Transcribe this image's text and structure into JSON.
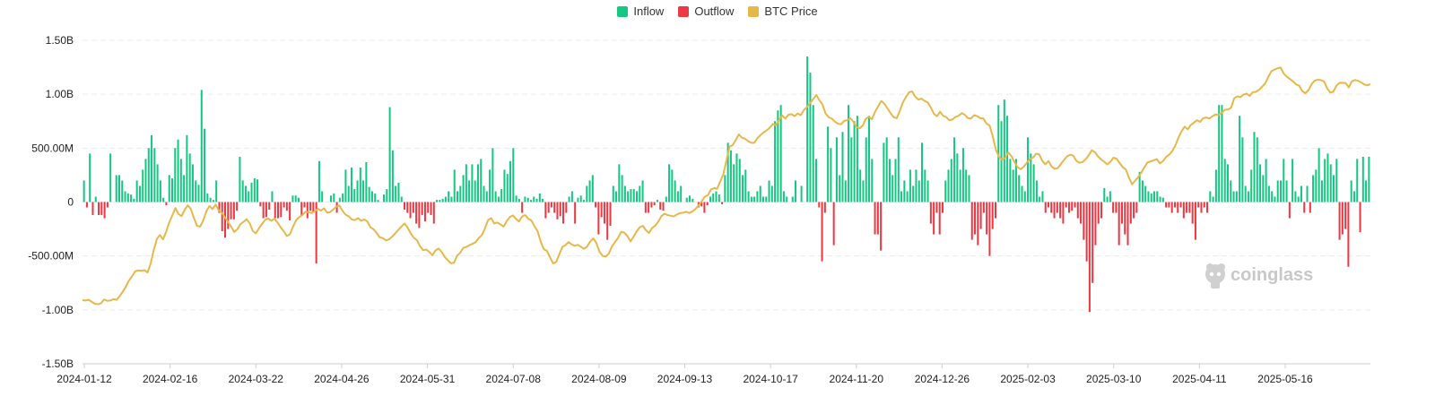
{
  "chart_data": {
    "type": "bar",
    "title": "",
    "xlabel": "",
    "ylabel": "",
    "ylim": [
      -1.5,
      1.5
    ],
    "y_unit": "B (USD)",
    "y_ticks": [
      {
        "value": 1.5,
        "label": "1.50B"
      },
      {
        "value": 1.0,
        "label": "1.00B"
      },
      {
        "value": 0.5,
        "label": "500.00M"
      },
      {
        "value": 0,
        "label": "0"
      },
      {
        "value": -0.5,
        "label": "-500.00M"
      },
      {
        "value": -1.0,
        "label": "-1.00B"
      },
      {
        "value": -1.5,
        "label": "-1.50B"
      }
    ],
    "x_ticks": [
      "2024-01-12",
      "2024-02-16",
      "2024-03-22",
      "2024-04-26",
      "2024-05-31",
      "2024-07-08",
      "2024-08-09",
      "2024-09-13",
      "2024-10-17",
      "2024-11-20",
      "2024-12-26",
      "2025-02-03",
      "2025-03-10",
      "2025-04-11",
      "2025-05-16"
    ],
    "grid": true,
    "legend": "top-center",
    "series": [
      {
        "name": "Inflow",
        "color": "#16c784",
        "values": [
          0.2,
          0.0,
          0.0,
          0.05,
          0.0,
          0.0,
          0.0,
          0.0,
          0.0,
          0.45,
          0.0,
          0.0,
          0.0,
          0.0,
          0.0,
          0.0,
          0.25,
          0.25,
          0.2,
          0.1,
          0.0,
          0.2,
          0.15,
          0.3,
          0.0,
          0.0,
          0.0,
          0.0,
          0.0,
          0.0,
          0.0,
          0.0,
          0.0,
          0.0,
          0.0,
          0.0,
          0.4,
          0.5,
          0.55,
          0.5,
          0.2,
          0.0,
          0.0,
          0.35,
          0.5,
          0.35,
          0.0,
          0.0,
          0.0,
          0.0,
          0.0,
          0.0,
          0.0,
          0.0,
          0.0,
          0.0,
          0.0,
          0.0,
          0.0,
          0.0,
          0.0,
          0.0,
          0.0,
          0.0,
          0.0,
          0.0,
          0.0,
          0.0,
          0.0,
          0.0,
          0.0,
          0.0,
          0.0,
          0.0,
          0.0,
          0.0,
          0.0,
          0.0,
          0.0,
          0.0,
          0.0,
          0.0,
          0.0,
          0.0,
          0.0,
          0.0,
          0.0,
          0.0,
          0.0,
          0.0,
          0.0,
          0.0,
          0.0,
          0.0,
          0.0,
          0.0,
          0.0,
          0.0,
          0.0,
          0.0,
          0.0,
          0.0,
          0.0,
          0.0,
          0.0,
          0.0,
          0.0,
          0.0,
          0.0,
          0.0,
          0.0,
          0.0,
          0.0,
          0.0,
          0.0,
          0.0,
          0.0,
          0.0,
          0.0,
          0.0,
          0.0,
          0.0,
          0.0,
          0.0,
          0.0,
          0.0,
          0.0,
          0.0,
          0.0,
          0.0,
          0.0,
          0.0,
          0.0,
          0.0,
          0.0,
          0.0,
          0.0,
          0.0,
          0.0,
          0.0,
          0.0,
          0.0,
          0.0,
          0.0,
          0.0,
          0.0,
          0.0,
          0.0,
          0.0,
          0.0,
          0.0,
          0.0,
          0.0,
          0.0,
          0.0,
          0.0,
          0.0,
          0.0,
          0.0,
          0.0,
          0.0,
          0.0,
          0.0,
          0.0,
          0.0,
          0.0,
          0.0,
          0.0,
          0.0,
          0.0,
          0.0,
          0.0,
          0.0,
          0.0,
          0.0,
          0.0,
          0.0,
          0.0,
          0.0,
          0.0,
          0.0,
          0.0,
          0.0,
          0.0,
          0.0,
          0.0,
          0.0,
          0.0,
          0.0,
          0.0,
          0.0,
          0.0,
          0.0,
          0.0,
          0.0,
          0.0,
          0.0,
          0.0,
          0.0,
          0.0,
          0.0,
          0.0,
          0.0,
          0.0,
          0.0,
          0.0,
          0.0,
          0.0,
          0.0,
          0.0,
          0.0,
          0.0,
          0.0,
          0.0,
          0.0,
          0.0,
          0.0,
          0.0,
          0.0,
          0.0,
          0.0,
          0.0,
          0.0,
          0.0,
          0.0,
          0.0,
          0.0,
          0.0,
          0.0,
          0.0,
          0.0,
          0.0,
          0.0,
          0.0,
          0.0,
          0.0,
          0.0,
          0.0,
          0.0,
          0.0,
          0.0,
          0.0,
          0.0,
          0.0,
          0.0,
          0.0,
          0.0,
          0.0,
          0.0,
          0.0,
          0.0,
          0.0,
          0.0,
          0.0,
          0.0,
          0.0,
          0.0,
          0.0,
          0.0,
          0.0,
          0.0,
          0.0,
          0.0,
          0.0,
          0.0,
          0.0,
          0.0,
          0.0,
          0.0,
          0.0,
          0.0,
          0.0,
          0.0,
          0.0,
          0.0,
          0.0,
          0.0,
          0.0,
          0.0,
          0.0,
          0.0,
          0.0,
          0.0,
          0.0,
          0.0,
          0.0,
          0.0,
          0.0,
          0.0,
          0.0,
          0.0,
          0.0,
          0.0,
          0.0,
          0.0,
          0.0,
          0.0,
          0.0,
          0.0,
          0.0,
          0.0,
          0.0,
          0.0,
          0.0,
          0.0,
          0.0,
          0.0,
          0.0,
          0.0,
          0.0,
          0.0,
          0.0,
          0.0,
          0.0,
          0.0,
          0.0,
          0.0,
          0.0,
          0.0,
          0.0,
          0.0,
          0.0,
          0.0,
          0.0,
          0.0,
          0.0,
          0.0,
          0.0,
          0.0,
          0.0,
          0.0,
          0.0,
          0.0,
          0.0,
          0.0,
          0.0,
          0.0,
          0.0,
          0.0,
          0.0,
          0.0,
          0.0,
          0.0,
          0.0,
          0.0,
          0.0,
          0.0,
          0.0,
          0.0,
          0.0,
          0.0,
          0.0,
          0.0,
          0.0,
          0.0,
          0.0,
          0.0,
          0.0,
          0.0,
          0.0,
          0.0,
          0.0,
          0.0,
          0.0,
          0.0,
          0.0,
          0.0,
          0.0,
          0.0,
          0.0,
          0.0,
          0.0,
          0.0
        ]
      },
      {
        "name": "Outflow",
        "color": "#ea3943",
        "values": []
      },
      {
        "name": "BTC Price",
        "color": "#e6b84a",
        "values": []
      }
    ],
    "flows": [
      0.2,
      -0.05,
      0.45,
      -0.12,
      0.05,
      -0.12,
      -0.12,
      -0.15,
      -0.05,
      0.45,
      0.0,
      0.25,
      0.25,
      0.2,
      0.1,
      0.08,
      0.07,
      0.03,
      0.2,
      0.15,
      0.3,
      0.4,
      0.5,
      0.62,
      0.5,
      0.35,
      0.2,
      0.04,
      -0.03,
      0.25,
      0.22,
      0.5,
      0.58,
      0.4,
      0.25,
      0.62,
      0.45,
      0.35,
      0.2,
      0.16,
      1.04,
      0.68,
      0.08,
      0.04,
      0.02,
      0.2,
      -0.1,
      -0.27,
      -0.33,
      -0.25,
      -0.16,
      -0.16,
      -0.08,
      0.42,
      0.2,
      0.15,
      0.1,
      0.18,
      0.22,
      0.21,
      -0.04,
      -0.15,
      -0.14,
      -0.07,
      0.1,
      -0.15,
      -0.15,
      -0.14,
      -0.05,
      -0.08,
      -0.17,
      0.06,
      0.06,
      0.04,
      -0.12,
      -0.05,
      -0.15,
      -0.08,
      -0.1,
      -0.57,
      0.38,
      0.1,
      0.0,
      0.0,
      0.06,
      0.08,
      -0.1,
      0.04,
      0.08,
      0.3,
      0.15,
      0.32,
      0.12,
      0.2,
      0.32,
      0.2,
      0.37,
      0.14,
      0.1,
      0.08,
      0.02,
      0.0,
      0.07,
      0.12,
      0.88,
      0.48,
      0.15,
      0.18,
      0.05,
      -0.07,
      -0.1,
      -0.15,
      -0.1,
      -0.2,
      -0.24,
      -0.12,
      -0.18,
      -0.1,
      -0.12,
      -0.2,
      0.02,
      0.02,
      0.03,
      0.05,
      0.1,
      0.05,
      0.3,
      0.1,
      0.15,
      0.25,
      0.35,
      0.2,
      0.35,
      0.2,
      0.35,
      0.4,
      0.15,
      0.1,
      0.3,
      0.5,
      0.1,
      0.05,
      0.12,
      0.3,
      0.26,
      0.38,
      0.5,
      0.06,
      0.03,
      -0.1,
      0.05,
      0.04,
      0.02,
      0.05,
      0.03,
      0.08,
      0.03,
      -0.15,
      -0.1,
      -0.05,
      -0.1,
      -0.16,
      -0.13,
      -0.2,
      -0.1,
      0.05,
      0.1,
      -0.2,
      0.04,
      0.06,
      0.02,
      0.15,
      0.2,
      0.25,
      -0.05,
      -0.3,
      -0.14,
      -0.2,
      -0.35,
      -0.22,
      0.15,
      0.1,
      0.35,
      0.25,
      0.15,
      0.1,
      0.12,
      0.12,
      0.1,
      0.15,
      0.2,
      -0.1,
      -0.1,
      -0.05,
      -0.03,
      0.02,
      -0.07,
      -0.08,
      0.05,
      0.35,
      0.3,
      0.2,
      0.1,
      0.15,
      0.0,
      0.04,
      0.06,
      0.03,
      0.0,
      -0.05,
      -0.04,
      -0.1,
      -0.03,
      0.05,
      0.08,
      0.1,
      0.07,
      -0.02,
      0.25,
      0.55,
      0.48,
      0.35,
      0.45,
      0.4,
      0.25,
      0.3,
      0.1,
      0.05,
      0.05,
      0.1,
      0.15,
      0.05,
      0.05,
      0.2,
      0.15,
      0.75,
      0.85,
      0.9,
      0.1,
      0.05,
      0.0,
      0.05,
      0.2,
      0.0,
      0.15,
      0.0,
      1.35,
      1.2,
      0.9,
      0.4,
      -0.05,
      -0.55,
      -0.1,
      0.7,
      0.5,
      -0.4,
      0.6,
      0.25,
      0.65,
      0.2,
      0.9,
      0.6,
      0.75,
      0.8,
      0.3,
      0.2,
      0.6,
      0.8,
      0.4,
      -0.3,
      -0.3,
      -0.45,
      0.55,
      0.6,
      0.4,
      0.25,
      0.4,
      0.6,
      0.1,
      0.2,
      0.1,
      0.3,
      0.15,
      0.3,
      0.2,
      0.55,
      0.3,
      0.2,
      -0.2,
      -0.3,
      -0.1,
      -0.3,
      -0.1,
      0.2,
      0.3,
      0.4,
      0.6,
      0.45,
      0.3,
      0.5,
      0.3,
      0.25,
      -0.35,
      -0.3,
      -0.4,
      -0.25,
      -0.1,
      -0.3,
      -0.5,
      -0.25,
      -0.15,
      0.9,
      0.75,
      0.95,
      0.8,
      0.4,
      0.3,
      0.4,
      0.25,
      0.15,
      0.1,
      0.6,
      0.45,
      0.35,
      0.2,
      0.05,
      0.1,
      -0.1,
      -0.05,
      -0.1,
      -0.15,
      -0.1,
      -0.15,
      -0.2,
      -0.05,
      -0.1,
      -0.08,
      -0.05,
      -0.15,
      -0.2,
      -0.35,
      -0.55,
      -1.02,
      -0.75,
      -0.4,
      -0.2,
      -0.15,
      0.13,
      0.05,
      0.1,
      -0.1,
      -0.1,
      -0.4,
      -0.2,
      -0.3,
      -0.4,
      -0.2,
      -0.15,
      -0.1,
      0.28,
      0.2,
      0.15,
      0.1,
      0.08,
      0.1,
      0.1,
      0.05,
      0.04,
      -0.05,
      -0.05,
      -0.1,
      -0.05,
      -0.1,
      -0.05,
      -0.15,
      -0.1,
      -0.1,
      -0.2,
      -0.35,
      -0.05,
      -0.1,
      -0.05,
      -0.1,
      0.1,
      0.05,
      0.3,
      0.9,
      0.9,
      0.4,
      0.35,
      0.2,
      0.1,
      0.1,
      0.8,
      0.6,
      0.15,
      0.1,
      0.3,
      0.65,
      0.6,
      0.35,
      0.25,
      0.4,
      0.15,
      0.1,
      0.05,
      0.2,
      0.2,
      0.4,
      0.2,
      -0.15,
      0.4,
      0.1,
      0.05,
      0.15,
      -0.1,
      0.15,
      -0.1,
      0.25,
      0.3,
      0.5,
      0.2,
      0.4,
      0.45,
      0.35,
      0.25,
      0.4,
      -0.35,
      -0.3,
      -0.25,
      -0.6,
      0.2,
      0.1,
      0.4,
      -0.28,
      0.42,
      0.2,
      0.42
    ],
    "btc_price": [
      43000,
      42900,
      43100,
      42500,
      41900,
      41800,
      42100,
      43200,
      42800,
      42900,
      43300,
      43100,
      44200,
      45500,
      47000,
      48800,
      50100,
      51500,
      51800,
      51700,
      51900,
      51200,
      53800,
      57800,
      61100,
      62300,
      61000,
      63200,
      66000,
      68100,
      70300,
      68500,
      67900,
      69800,
      71100,
      70000,
      67300,
      65000,
      64800,
      66600,
      69300,
      70900,
      70000,
      71300,
      69600,
      68900,
      67500,
      66200,
      64800,
      63200,
      64000,
      65500,
      66200,
      67000,
      65800,
      63500,
      62800,
      64300,
      65600,
      66800,
      67200,
      66500,
      67100,
      66000,
      64600,
      63400,
      62000,
      62500,
      64800,
      66700,
      67600,
      68200,
      69200,
      69000,
      68800,
      69300,
      70100,
      69500,
      70200,
      68900,
      69100,
      69900,
      70700,
      71000,
      69400,
      68300,
      67800,
      66900,
      66700,
      67300,
      66500,
      66900,
      66300,
      64600,
      64000,
      62900,
      61600,
      61400,
      60700,
      61000,
      61800,
      62800,
      63800,
      64800,
      65700,
      64500,
      62800,
      61500,
      60800,
      59000,
      57800,
      58000,
      57300,
      56300,
      57700,
      58300,
      57300,
      55800,
      54800,
      53900,
      54100,
      56200,
      57000,
      58500,
      58800,
      59300,
      59700,
      60200,
      61400,
      62300,
      64300,
      66700,
      67300,
      65700,
      66000,
      65400,
      64800,
      66400,
      67600,
      68100,
      67100,
      66300,
      67800,
      68200,
      67100,
      66600,
      64900,
      63400,
      60300,
      58100,
      57600,
      55700,
      53900,
      54300,
      56600,
      58800,
      59300,
      60200,
      59500,
      59100,
      59400,
      58800,
      58200,
      58900,
      60400,
      61300,
      59900,
      57300,
      56100,
      55900,
      56800,
      58900,
      60200,
      61500,
      63200,
      63000,
      62000,
      60400,
      61800,
      63400,
      64600,
      65000,
      63700,
      62900,
      64400,
      65100,
      66300,
      67900,
      68600,
      68200,
      68000,
      67800,
      68400,
      68800,
      68900,
      69200,
      68800,
      69300,
      70000,
      71100,
      72300,
      73600,
      74100,
      75800,
      76200,
      76000,
      78200,
      80300,
      84400,
      88500,
      88900,
      90400,
      92100,
      91100,
      90800,
      90100,
      89600,
      89600,
      91000,
      91900,
      92700,
      93300,
      94100,
      95200,
      94800,
      96400,
      97700,
      96800,
      97900,
      98100,
      97500,
      98300,
      97800,
      99300,
      100200,
      101400,
      102500,
      103800,
      102200,
      101000,
      98300,
      97200,
      96800,
      95900,
      95300,
      95100,
      96100,
      96300,
      96900,
      95800,
      94300,
      93900,
      94700,
      96700,
      97300,
      96600,
      98800,
      100400,
      102000,
      101200,
      99800,
      98400,
      97200,
      96900,
      99100,
      101600,
      103200,
      104600,
      104800,
      103200,
      102400,
      102700,
      102000,
      101600,
      100100,
      98200,
      97500,
      98800,
      97600,
      97200,
      96300,
      96500,
      97300,
      97600,
      98400,
      97900,
      96900,
      96800,
      97800,
      97500,
      96900,
      96800,
      95300,
      94700,
      91600,
      87600,
      85500,
      84600,
      85100,
      86800,
      85700,
      84000,
      82400,
      81800,
      82500,
      83700,
      84800,
      85200,
      86400,
      86200,
      84300,
      83200,
      84200,
      82600,
      81900,
      82100,
      83300,
      84500,
      85600,
      86100,
      85800,
      84300,
      83700,
      83900,
      84700,
      85900,
      87400,
      86800,
      85600,
      84700,
      84000,
      83200,
      84000,
      85200,
      84900,
      83600,
      82400,
      81700,
      79300,
      77300,
      78400,
      79400,
      80800,
      82400,
      83800,
      84100,
      84400,
      84800,
      83500,
      84200,
      85400,
      86100,
      87200,
      88800,
      91200,
      93000,
      94400,
      93600,
      94900,
      95600,
      96300,
      95800,
      96900,
      97100,
      96800,
      97500,
      98000,
      97900,
      98500,
      99400,
      99500,
      100000,
      102800,
      103400,
      103100,
      103900,
      104200,
      103500,
      104600,
      104700,
      105300,
      106200,
      107200,
      109100,
      110800,
      111300,
      111700,
      111900,
      110100,
      109200,
      108500,
      107800,
      106900,
      106500,
      104900,
      104300,
      105200,
      107000,
      108000,
      108300,
      108200,
      107800,
      105800,
      104500,
      104700,
      106500,
      107400,
      107400,
      107300,
      106000,
      107800,
      108200,
      108000,
      107500,
      106900,
      106600,
      107000
    ],
    "price_axis_range": [
      43000,
      112000
    ]
  },
  "legend": {
    "inflow": "Inflow",
    "outflow": "Outflow",
    "btc_price": "BTC Price"
  },
  "colors": {
    "inflow": "#16c784",
    "outflow": "#ea3943",
    "btc_price": "#e6b84a",
    "grid": "#ececec",
    "watermark": "#c8c8c8"
  },
  "watermark": {
    "text": "coinglass",
    "icon": "coinglass-logo-icon"
  }
}
